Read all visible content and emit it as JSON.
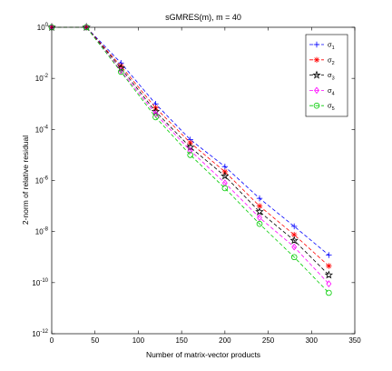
{
  "chart_data": {
    "type": "line",
    "title": "sGMRES(m),  m = 40",
    "xlabel": "Number of matrix-vector products",
    "ylabel": "2-norm of relative residual",
    "xlim": [
      0,
      350
    ],
    "ylim_log10": [
      -12,
      0
    ],
    "y_scale": "log",
    "x_ticks": [
      "0",
      "50",
      "100",
      "150",
      "200",
      "250",
      "300",
      "350"
    ],
    "y_tick_exponents": [
      "0",
      "-2",
      "-4",
      "-6",
      "-8",
      "-10",
      "-12"
    ],
    "y_tick_base": "10",
    "grid": false,
    "legend_position": "top-right",
    "series": [
      {
        "name": "σ_1",
        "name_main": "σ",
        "name_sub": "1",
        "color": "#0000ff",
        "marker": "plus",
        "x": [
          0,
          40,
          80,
          120,
          160,
          200,
          240,
          280,
          320
        ],
        "y": [
          1,
          1,
          0.04,
          0.001,
          4e-05,
          3.5e-06,
          2e-07,
          1.6e-08,
          1.2e-09
        ]
      },
      {
        "name": "σ_2",
        "name_main": "σ",
        "name_sub": "2",
        "color": "#ff0000",
        "marker": "asterisk",
        "x": [
          0,
          40,
          80,
          120,
          160,
          200,
          240,
          280,
          320
        ],
        "y": [
          1,
          1,
          0.03,
          0.0007,
          3e-05,
          2.2e-06,
          1e-07,
          7.5e-09,
          4.5e-10
        ]
      },
      {
        "name": "σ_3",
        "name_main": "σ",
        "name_sub": "3",
        "color": "#000000",
        "marker": "star",
        "x": [
          0,
          40,
          80,
          120,
          160,
          200,
          240,
          280,
          320
        ],
        "y": [
          1,
          1,
          0.025,
          0.0005,
          2e-05,
          1.5e-06,
          6e-08,
          4.5e-09,
          2e-10
        ]
      },
      {
        "name": "σ_4",
        "name_main": "σ",
        "name_sub": "4",
        "color": "#ff00ff",
        "marker": "diamond",
        "x": [
          0,
          40,
          80,
          120,
          160,
          200,
          240,
          280,
          320
        ],
        "y": [
          1,
          1,
          0.02,
          0.0004,
          1.5e-05,
          8e-07,
          3.5e-08,
          2.5e-09,
          9e-11
        ]
      },
      {
        "name": "σ_5",
        "name_main": "σ",
        "name_sub": "5",
        "color": "#00cc00",
        "marker": "circle",
        "x": [
          0,
          40,
          80,
          120,
          160,
          200,
          240,
          280,
          320
        ],
        "y": [
          1,
          1,
          0.018,
          0.0003,
          1e-05,
          5e-07,
          2e-08,
          1e-09,
          4e-11
        ]
      }
    ]
  }
}
